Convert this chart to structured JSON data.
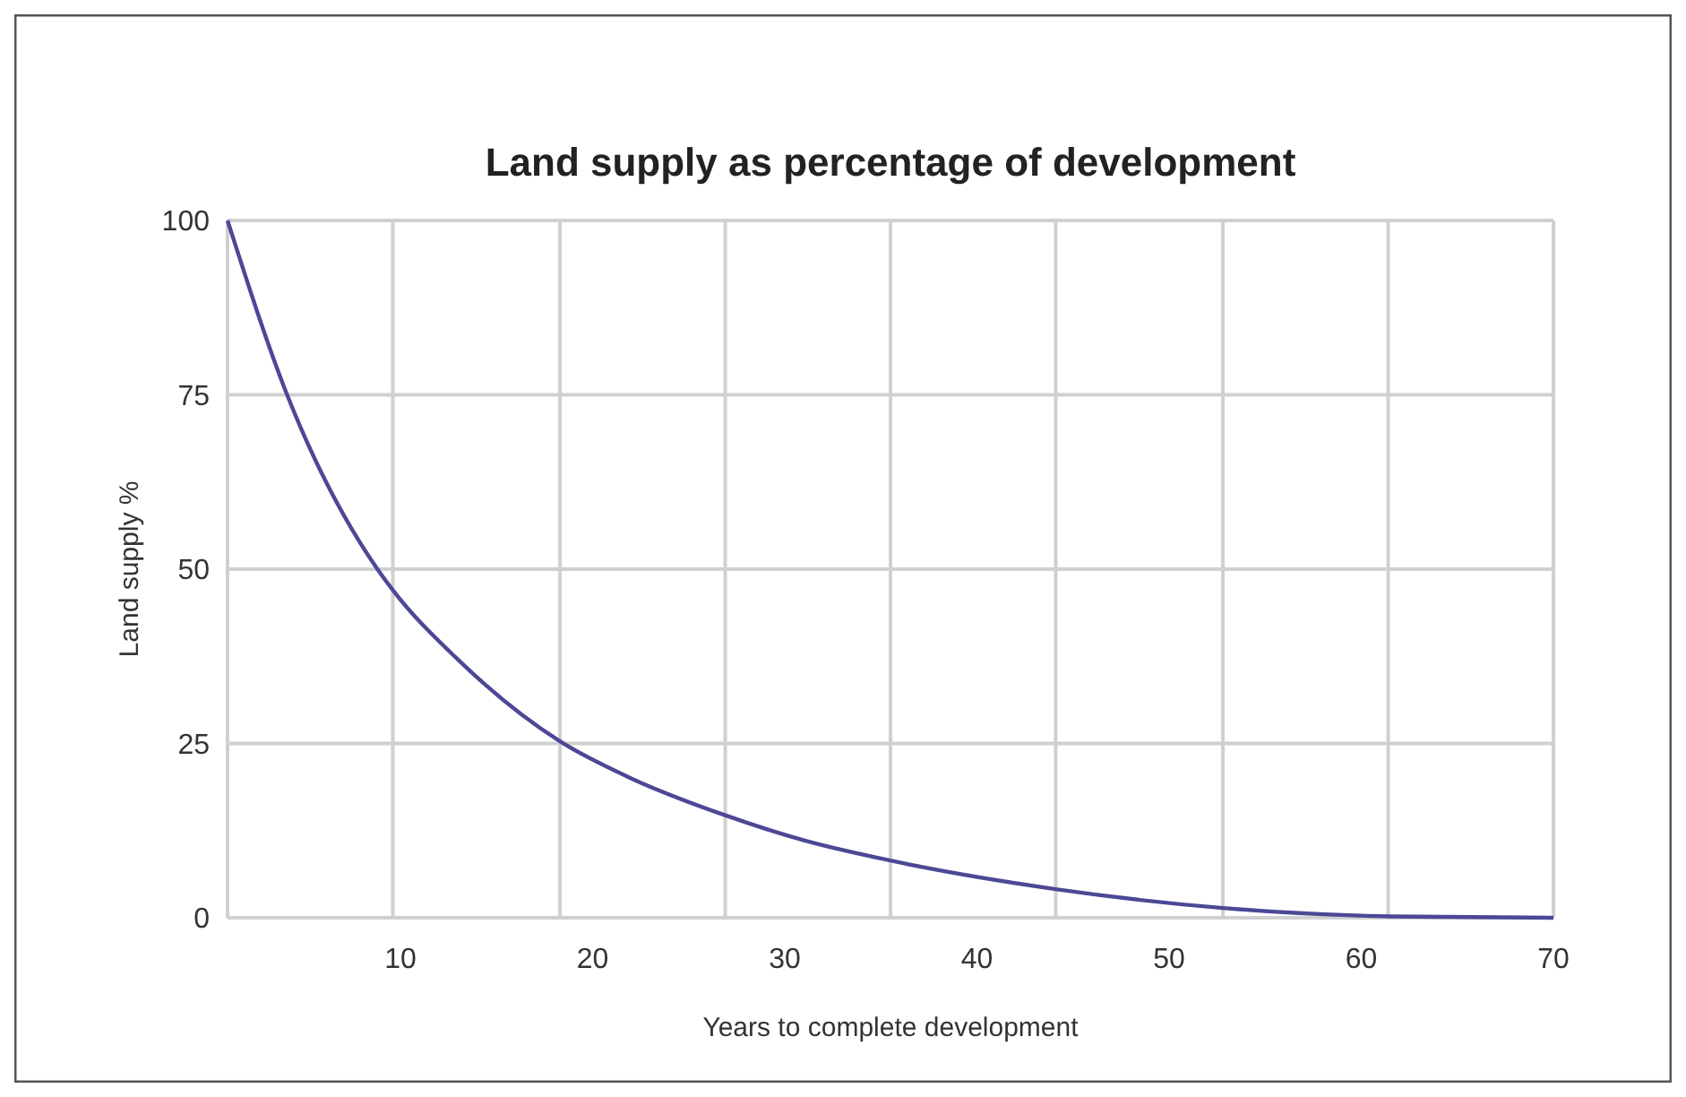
{
  "chart_data": {
    "type": "line",
    "title": "Land supply as percentage of development",
    "xlabel": "Years to complete development",
    "ylabel": "Land supply %",
    "x": [
      1,
      4.1,
      8.8,
      9.6,
      13,
      18.3,
      22,
      26.9,
      31,
      35.5,
      44.1,
      52.8,
      61.5,
      70
    ],
    "series": [
      {
        "color": "#4c4896",
        "values": [
          100,
          75,
          50,
          47,
          37,
          25.3,
          20,
          14.7,
          11.1,
          8.2,
          4.1,
          1.4,
          0.2,
          0
        ]
      }
    ],
    "xlim": [
      1,
      70
    ],
    "xticks": [
      {
        "value": 1,
        "label": null
      },
      {
        "value": 9.6,
        "label": null
      },
      {
        "value": 10,
        "label": "10"
      },
      {
        "value": 18.3,
        "label": null
      },
      {
        "value": 20,
        "label": "20"
      },
      {
        "value": 26.9,
        "label": null
      },
      {
        "value": 30,
        "label": "30"
      },
      {
        "value": 35.5,
        "label": null
      },
      {
        "value": 40,
        "label": "40"
      },
      {
        "value": 44.1,
        "label": null
      },
      {
        "value": 50,
        "label": "50"
      },
      {
        "value": 52.8,
        "label": null
      },
      {
        "value": 60,
        "label": "60"
      },
      {
        "value": 61.4,
        "label": null
      },
      {
        "value": 70,
        "label": "70"
      }
    ],
    "ylim": [
      0,
      100
    ],
    "yticks": [
      0,
      25,
      50,
      75,
      100
    ],
    "grid": true,
    "marker": "none",
    "line_style": "solid"
  }
}
